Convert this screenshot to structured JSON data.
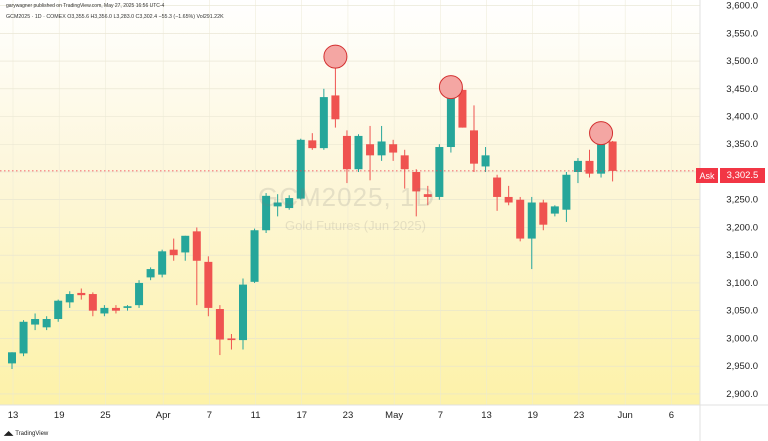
{
  "header": {
    "published": "garywagner published on TradingView.com, May 27, 2025 16:56 UTC-4",
    "symbol_line": "GCM2025 · 1D · COMEX  O3,355.6  H3,356.0  L3,283.0  C3,302.4  −55.3 (−1.65%)  Vol291.22K"
  },
  "watermark": {
    "ticker": "GCM2025, 1D",
    "name": "Gold Futures (Jun 2025)"
  },
  "footer": {
    "brand": "TradingView"
  },
  "ask": {
    "label": "Ask",
    "value": "3,302.5"
  },
  "colors": {
    "up": "#26a69a",
    "down": "#ef5350",
    "marker_fill": "#f4a6a3",
    "marker_stroke": "#d32f2f",
    "ask": "#f23645"
  },
  "chart_data": {
    "type": "candlestick",
    "title": "GCM2025 · 1D · COMEX",
    "ylim": [
      2880,
      3610
    ],
    "y_ticks": [
      2900,
      2950,
      3000,
      3050,
      3100,
      3150,
      3200,
      3250,
      3300,
      3350,
      3400,
      3450,
      3500,
      3550,
      3600
    ],
    "y_tick_labels": [
      "2,900.0",
      "2,950.0",
      "3,000.0",
      "3,050.0",
      "3,100.0",
      "3,150.0",
      "3,200.0",
      "3,250.0",
      "3,300.0",
      "3,350.0",
      "3,400.0",
      "3,450.0",
      "3,500.0",
      "3,550.0",
      "3,600.0"
    ],
    "x_ticks": [
      {
        "label": "13",
        "index": 0
      },
      {
        "label": "19",
        "index": 4
      },
      {
        "label": "25",
        "index": 8
      },
      {
        "label": "Apr",
        "index": 13
      },
      {
        "label": "7",
        "index": 17
      },
      {
        "label": "11",
        "index": 21
      },
      {
        "label": "17",
        "index": 25
      },
      {
        "label": "23",
        "index": 29
      },
      {
        "label": "May",
        "index": 33
      },
      {
        "label": "7",
        "index": 37
      },
      {
        "label": "13",
        "index": 41
      },
      {
        "label": "19",
        "index": 45
      },
      {
        "label": "23",
        "index": 49
      },
      {
        "label": "Jun",
        "index": 53
      },
      {
        "label": "6",
        "index": 57
      }
    ],
    "candles": [
      {
        "o": 2955,
        "h": 2975,
        "l": 2945,
        "c": 2975
      },
      {
        "o": 2973,
        "h": 3033,
        "l": 2968,
        "c": 3030
      },
      {
        "o": 3025,
        "h": 3045,
        "l": 3015,
        "c": 3035
      },
      {
        "o": 3020,
        "h": 3040,
        "l": 3015,
        "c": 3035
      },
      {
        "o": 3035,
        "h": 3070,
        "l": 3030,
        "c": 3068
      },
      {
        "o": 3065,
        "h": 3085,
        "l": 3055,
        "c": 3080
      },
      {
        "o": 3082,
        "h": 3090,
        "l": 3070,
        "c": 3078
      },
      {
        "o": 3080,
        "h": 3083,
        "l": 3040,
        "c": 3050
      },
      {
        "o": 3045,
        "h": 3060,
        "l": 3040,
        "c": 3055
      },
      {
        "o": 3055,
        "h": 3060,
        "l": 3045,
        "c": 3050
      },
      {
        "o": 3055,
        "h": 3060,
        "l": 3050,
        "c": 3058
      },
      {
        "o": 3060,
        "h": 3105,
        "l": 3055,
        "c": 3100
      },
      {
        "o": 3110,
        "h": 3128,
        "l": 3105,
        "c": 3125
      },
      {
        "o": 3115,
        "h": 3160,
        "l": 3110,
        "c": 3157
      },
      {
        "o": 3160,
        "h": 3180,
        "l": 3140,
        "c": 3150
      },
      {
        "o": 3155,
        "h": 3185,
        "l": 3140,
        "c": 3185
      },
      {
        "o": 3193,
        "h": 3200,
        "l": 3060,
        "c": 3140
      },
      {
        "o": 3138,
        "h": 3148,
        "l": 3040,
        "c": 3055
      },
      {
        "o": 3053,
        "h": 3060,
        "l": 2970,
        "c": 2998
      },
      {
        "o": 3000,
        "h": 3008,
        "l": 2980,
        "c": 2997
      },
      {
        "o": 2997,
        "h": 3108,
        "l": 2980,
        "c": 3097
      },
      {
        "o": 3102,
        "h": 3198,
        "l": 3100,
        "c": 3195
      },
      {
        "o": 3195,
        "h": 3262,
        "l": 3190,
        "c": 3257
      },
      {
        "o": 3238,
        "h": 3260,
        "l": 3220,
        "c": 3245
      },
      {
        "o": 3235,
        "h": 3258,
        "l": 3232,
        "c": 3253
      },
      {
        "o": 3252,
        "h": 3360,
        "l": 3250,
        "c": 3358
      },
      {
        "o": 3357,
        "h": 3370,
        "l": 3340,
        "c": 3343
      },
      {
        "o": 3343,
        "h": 3450,
        "l": 3340,
        "c": 3435
      },
      {
        "o": 3438,
        "h": 3500,
        "l": 3380,
        "c": 3395
      },
      {
        "o": 3365,
        "h": 3375,
        "l": 3280,
        "c": 3305
      },
      {
        "o": 3305,
        "h": 3368,
        "l": 3300,
        "c": 3365
      },
      {
        "o": 3350,
        "h": 3383,
        "l": 3285,
        "c": 3330
      },
      {
        "o": 3330,
        "h": 3383,
        "l": 3320,
        "c": 3355
      },
      {
        "o": 3350,
        "h": 3358,
        "l": 3320,
        "c": 3335
      },
      {
        "o": 3330,
        "h": 3340,
        "l": 3270,
        "c": 3305
      },
      {
        "o": 3300,
        "h": 3305,
        "l": 3220,
        "c": 3265
      },
      {
        "o": 3260,
        "h": 3275,
        "l": 3240,
        "c": 3255
      },
      {
        "o": 3255,
        "h": 3350,
        "l": 3250,
        "c": 3345
      },
      {
        "o": 3345,
        "h": 3440,
        "l": 3335,
        "c": 3440
      },
      {
        "o": 3448,
        "h": 3450,
        "l": 3380,
        "c": 3380
      },
      {
        "o": 3375,
        "h": 3420,
        "l": 3300,
        "c": 3315
      },
      {
        "o": 3310,
        "h": 3345,
        "l": 3300,
        "c": 3330
      },
      {
        "o": 3290,
        "h": 3295,
        "l": 3230,
        "c": 3255
      },
      {
        "o": 3255,
        "h": 3275,
        "l": 3240,
        "c": 3245
      },
      {
        "o": 3250,
        "h": 3255,
        "l": 3175,
        "c": 3180
      },
      {
        "o": 3180,
        "h": 3255,
        "l": 3125,
        "c": 3245
      },
      {
        "o": 3245,
        "h": 3250,
        "l": 3195,
        "c": 3205
      },
      {
        "o": 3225,
        "h": 3240,
        "l": 3220,
        "c": 3238
      },
      {
        "o": 3232,
        "h": 3300,
        "l": 3210,
        "c": 3295
      },
      {
        "o": 3300,
        "h": 3325,
        "l": 3280,
        "c": 3320
      },
      {
        "o": 3320,
        "h": 3340,
        "l": 3290,
        "c": 3297
      },
      {
        "o": 3297,
        "h": 3362,
        "l": 3290,
        "c": 3358
      },
      {
        "o": 3355,
        "h": 3356,
        "l": 3283,
        "c": 3302
      }
    ],
    "markers": [
      {
        "index": 28,
        "price": 3508
      },
      {
        "index": 38,
        "price": 3453
      },
      {
        "index": 51,
        "price": 3370
      }
    ]
  }
}
